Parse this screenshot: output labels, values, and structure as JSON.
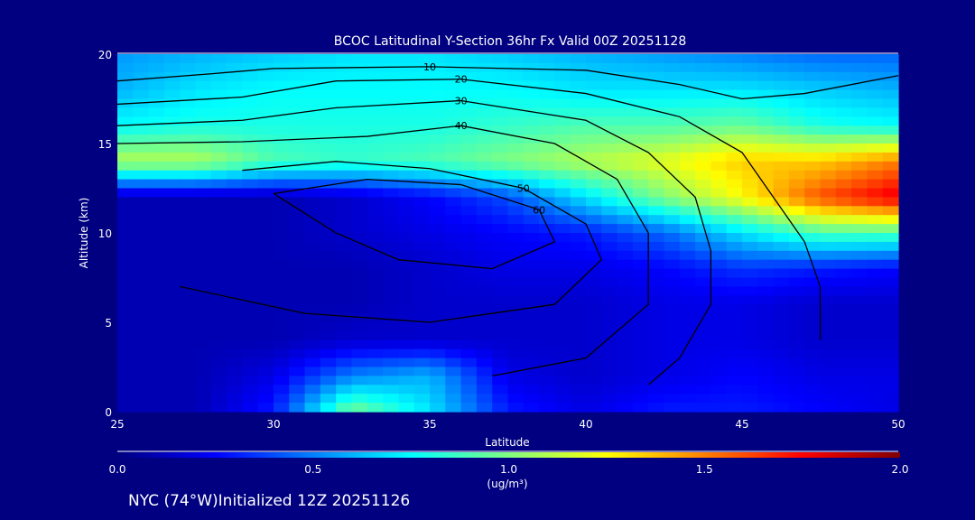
{
  "chart_data": {
    "type": "heatmap",
    "title": "BCOC Latitudinal Y-Section 36hr  Fx Valid 00Z 20251128",
    "xlabel": "Latitude",
    "ylabel": "Altitude (km)",
    "xlim": [
      25,
      50
    ],
    "ylim": [
      0,
      20
    ],
    "xticks": [
      "25",
      "30",
      "35",
      "40",
      "45",
      "50"
    ],
    "yticks": [
      "0",
      "5",
      "10",
      "15",
      "20"
    ],
    "grid_lat": [
      25,
      27.5,
      30,
      32.5,
      35,
      37.5,
      40,
      42.5,
      45,
      47.5,
      50
    ],
    "grid_alt": [
      20,
      18,
      16,
      14,
      12,
      10,
      8,
      6,
      4,
      2,
      0
    ],
    "values": [
      [
        0.55,
        0.6,
        0.65,
        0.7,
        0.7,
        0.65,
        0.6,
        0.55,
        0.5,
        0.45,
        0.45
      ],
      [
        0.6,
        0.7,
        0.75,
        0.75,
        0.75,
        0.75,
        0.7,
        0.7,
        0.7,
        0.65,
        0.6
      ],
      [
        0.75,
        0.8,
        0.8,
        0.8,
        0.8,
        0.85,
        0.9,
        0.9,
        0.95,
        0.8,
        0.75
      ],
      [
        1.1,
        1.1,
        0.9,
        0.85,
        0.9,
        1.0,
        1.1,
        1.2,
        1.35,
        1.35,
        1.5
      ],
      [
        0.1,
        0.1,
        0.1,
        0.15,
        0.25,
        0.4,
        0.7,
        1.0,
        1.25,
        1.6,
        1.8
      ],
      [
        0.1,
        0.1,
        0.1,
        0.15,
        0.2,
        0.25,
        0.3,
        0.45,
        0.7,
        0.9,
        0.9
      ],
      [
        0.1,
        0.1,
        0.1,
        0.1,
        0.15,
        0.2,
        0.2,
        0.25,
        0.35,
        0.3,
        0.25
      ],
      [
        0.1,
        0.1,
        0.1,
        0.1,
        0.15,
        0.15,
        0.15,
        0.2,
        0.2,
        0.15,
        0.15
      ],
      [
        0.1,
        0.1,
        0.1,
        0.15,
        0.15,
        0.15,
        0.15,
        0.2,
        0.2,
        0.15,
        0.15
      ],
      [
        0.1,
        0.1,
        0.2,
        0.5,
        0.6,
        0.2,
        0.15,
        0.2,
        0.25,
        0.2,
        0.2
      ],
      [
        0.1,
        0.1,
        0.3,
        1.0,
        0.7,
        0.3,
        0.2,
        0.3,
        0.3,
        0.25,
        0.2
      ]
    ],
    "contours": [
      {
        "label": "10",
        "points": [
          [
            25,
            18.5
          ],
          [
            28,
            18.9
          ],
          [
            30,
            19.2
          ],
          [
            35,
            19.3
          ],
          [
            40,
            19.1
          ],
          [
            43,
            18.3
          ],
          [
            45,
            17.5
          ],
          [
            47,
            17.8
          ],
          [
            50,
            18.8
          ]
        ]
      },
      {
        "label": "20",
        "points": [
          [
            25,
            17.2
          ],
          [
            29,
            17.6
          ],
          [
            32,
            18.5
          ],
          [
            36,
            18.6
          ],
          [
            40,
            17.8
          ],
          [
            43,
            16.5
          ],
          [
            45,
            14.5
          ],
          [
            46,
            12
          ],
          [
            47,
            9.5
          ],
          [
            47.5,
            7
          ],
          [
            47.5,
            4
          ]
        ]
      },
      {
        "label": "30",
        "points": [
          [
            25,
            16
          ],
          [
            29,
            16.3
          ],
          [
            32,
            17
          ],
          [
            36,
            17.4
          ],
          [
            40,
            16.3
          ],
          [
            42,
            14.5
          ],
          [
            43.5,
            12
          ],
          [
            44,
            9
          ],
          [
            44,
            6
          ],
          [
            43,
            3
          ],
          [
            42,
            1.5
          ]
        ]
      },
      {
        "label": "40",
        "points": [
          [
            25,
            15
          ],
          [
            29,
            15.1
          ],
          [
            33,
            15.4
          ],
          [
            36,
            16
          ],
          [
            39,
            15
          ],
          [
            41,
            13
          ],
          [
            42,
            10
          ],
          [
            42,
            6
          ],
          [
            40,
            3
          ],
          [
            37,
            2
          ]
        ]
      },
      {
        "label": "50",
        "points": [
          [
            29,
            13.5
          ],
          [
            32,
            14
          ],
          [
            35,
            13.6
          ],
          [
            38,
            12.5
          ],
          [
            40,
            10.5
          ],
          [
            40.5,
            8.5
          ],
          [
            39,
            6
          ],
          [
            35,
            5
          ],
          [
            31,
            5.5
          ],
          [
            27,
            7
          ]
        ]
      },
      {
        "label": "60",
        "points": [
          [
            30,
            12.2
          ],
          [
            33,
            13
          ],
          [
            36,
            12.7
          ],
          [
            38.5,
            11.3
          ],
          [
            39,
            9.5
          ],
          [
            37,
            8
          ],
          [
            34,
            8.5
          ],
          [
            32,
            10
          ],
          [
            30,
            12.2
          ]
        ]
      }
    ],
    "colorbar": {
      "label": "(ug/m³)",
      "range": [
        0,
        2
      ],
      "ticks": [
        "0.0",
        "0.5",
        "1.0",
        "1.5",
        "2.0"
      ]
    }
  },
  "footer": "NYC (74°W)Initialized 12Z 20251126"
}
